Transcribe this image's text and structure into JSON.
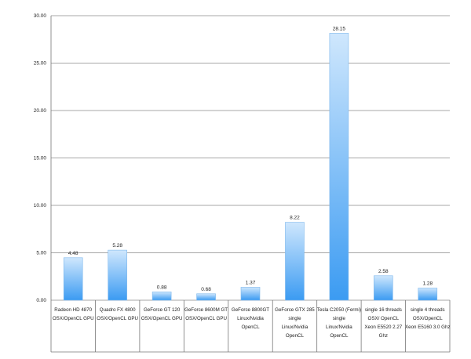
{
  "chart_data": {
    "type": "bar",
    "categories": [
      [
        "Radeon HD 4870",
        "",
        "OSX/OpenCL GPU"
      ],
      [
        "Quadro FX 4800",
        "",
        "OSX/OpenCL GPU"
      ],
      [
        "GeForce GT 120",
        "",
        "OSX/OpenCL GPU"
      ],
      [
        "GeForce 8600M GT",
        "",
        "OSX/OpenCL GPU"
      ],
      [
        "GeForce 8800GT",
        "",
        "Linux/Nvidia",
        "OpenCL"
      ],
      [
        "GeForce GTX 285",
        "single",
        "Linux/Nvidia",
        "OpenCL"
      ],
      [
        "Tesla C2050 (Fermi)",
        "single",
        "Linux/Nvidia",
        "OpenCL"
      ],
      [
        "single 16 threads",
        "",
        "OSX/ OpenCL",
        "Xeon E5520 2.27",
        "Ghz"
      ],
      [
        "single 4 threads",
        "",
        "OSX/OpenCL",
        "Xeon E5160 3.0 Ghz"
      ]
    ],
    "values": [
      4.48,
      5.28,
      0.88,
      0.68,
      1.37,
      8.22,
      28.15,
      2.58,
      1.28
    ],
    "value_labels": [
      "4.48",
      "5.28",
      "0.88",
      "0.68",
      "1.37",
      "8.22",
      "28.15",
      "2.58",
      "1.28"
    ],
    "y_ticks": [
      "0.00",
      "5.00",
      "10.00",
      "15.00",
      "20.00",
      "25.00",
      "30.00"
    ],
    "ylim": [
      0,
      30
    ],
    "title": "",
    "xlabel": "",
    "ylabel": "",
    "grid": true,
    "colors": {
      "bar_top": "#cfe7fd",
      "bar_bottom": "#3b9bf2",
      "bar_stroke": "#7fb8ec",
      "grid": "#8a8a8a"
    }
  }
}
